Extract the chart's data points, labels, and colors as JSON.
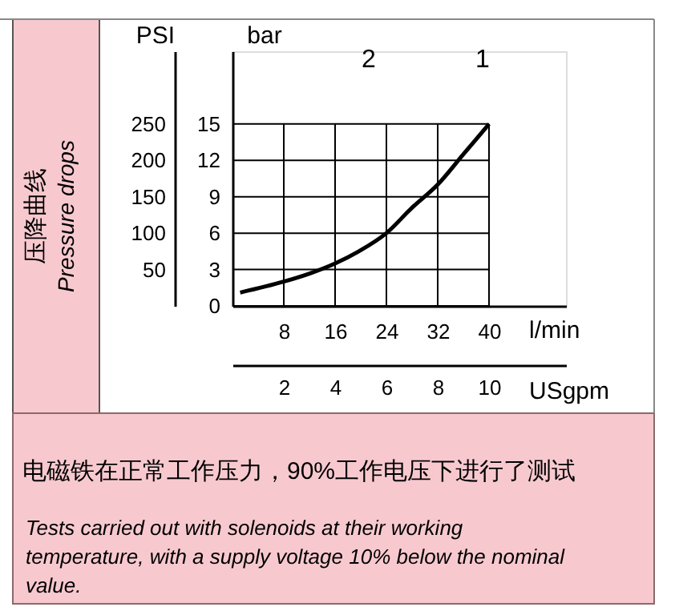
{
  "chart_data": {
    "type": "line",
    "x": [
      1.2,
      8,
      12.2,
      16,
      19.7,
      24,
      28,
      32,
      36,
      40
    ],
    "series": [
      {
        "color": "#000000",
        "values": [
          1.1,
          2.0,
          2.7,
          3.5,
          4.5,
          6.0,
          8.1,
          10.0,
          12.5,
          15
        ]
      }
    ],
    "xlabel": "l/min",
    "ylabel": "bar",
    "y2label": "PSI",
    "x2label": "USgpm",
    "xlim": [
      0,
      52
    ],
    "xticks": [
      8,
      16,
      24,
      32,
      40
    ],
    "ylim": [
      0,
      21
    ],
    "yticks": [
      0,
      3,
      6,
      9,
      12,
      15
    ],
    "y2lim": [
      0,
      350
    ],
    "y2ticks": [
      50,
      100,
      150,
      200,
      250
    ],
    "x2lim": [
      0,
      13
    ],
    "x2ticks": [
      2,
      4,
      6,
      8,
      10
    ],
    "grid": true,
    "line_style": "solid",
    "annotations": [
      "压降曲线",
      "Pressure drops",
      "2",
      "1",
      "电磁铁在正常工作压力，90%工作电压下进行了测试",
      "Tests carried out with solenoids at their working temperature, with a supply voltage 10% below the nominal value."
    ]
  }
}
